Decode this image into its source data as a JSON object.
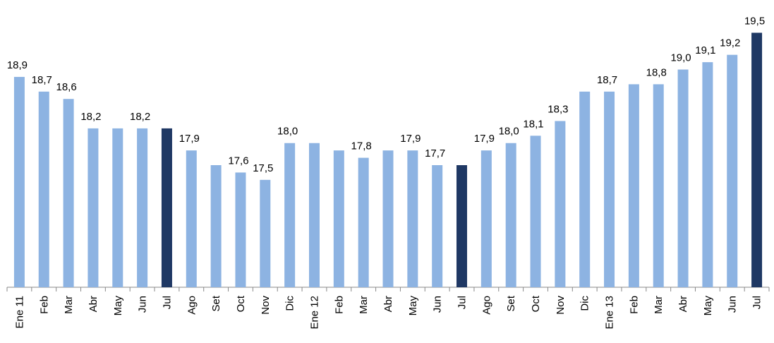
{
  "chart_data": {
    "type": "bar",
    "categories": [
      "Ene 11",
      "Feb",
      "Mar",
      "Abr",
      "May",
      "Jun",
      "Jul",
      "Ago",
      "Set",
      "Oct",
      "Nov",
      "Dic",
      "Ene 12",
      "Feb",
      "Mar",
      "Abr",
      "May",
      "Jun",
      "Jul",
      "Ago",
      "Set",
      "Oct",
      "Nov",
      "Dic",
      "Ene 13",
      "Feb",
      "Mar",
      "Abr",
      "May",
      "Jun",
      "Jul"
    ],
    "values": [
      18.9,
      18.7,
      18.6,
      18.2,
      18.2,
      18.2,
      18.2,
      17.9,
      17.7,
      17.6,
      17.5,
      18.0,
      18.0,
      17.9,
      17.8,
      17.9,
      17.9,
      17.7,
      17.7,
      17.9,
      18.0,
      18.1,
      18.3,
      18.7,
      18.7,
      18.8,
      18.8,
      19.0,
      19.1,
      19.2,
      19.5
    ],
    "value_labels": [
      "18,9",
      "18,7",
      "18,6",
      "18,2",
      null,
      "18,2",
      null,
      "17,9",
      null,
      "17,6",
      "17,5",
      "18,0",
      null,
      null,
      "17,8",
      null,
      "17,9",
      "17,7",
      null,
      "17,9",
      "18,0",
      "18,1",
      "18,3",
      null,
      "18,7",
      null,
      "18,8",
      "19,0",
      "19,1",
      "19,2",
      "19,5"
    ],
    "colors": [
      "#8db3e2",
      "#8db3e2",
      "#8db3e2",
      "#8db3e2",
      "#8db3e2",
      "#8db3e2",
      "#1f3864",
      "#8db3e2",
      "#8db3e2",
      "#8db3e2",
      "#8db3e2",
      "#8db3e2",
      "#8db3e2",
      "#8db3e2",
      "#8db3e2",
      "#8db3e2",
      "#8db3e2",
      "#8db3e2",
      "#1f3864",
      "#8db3e2",
      "#8db3e2",
      "#8db3e2",
      "#8db3e2",
      "#8db3e2",
      "#8db3e2",
      "#8db3e2",
      "#8db3e2",
      "#8db3e2",
      "#8db3e2",
      "#8db3e2",
      "#1f3864"
    ],
    "ylim": [
      16.04,
      19.6
    ]
  }
}
